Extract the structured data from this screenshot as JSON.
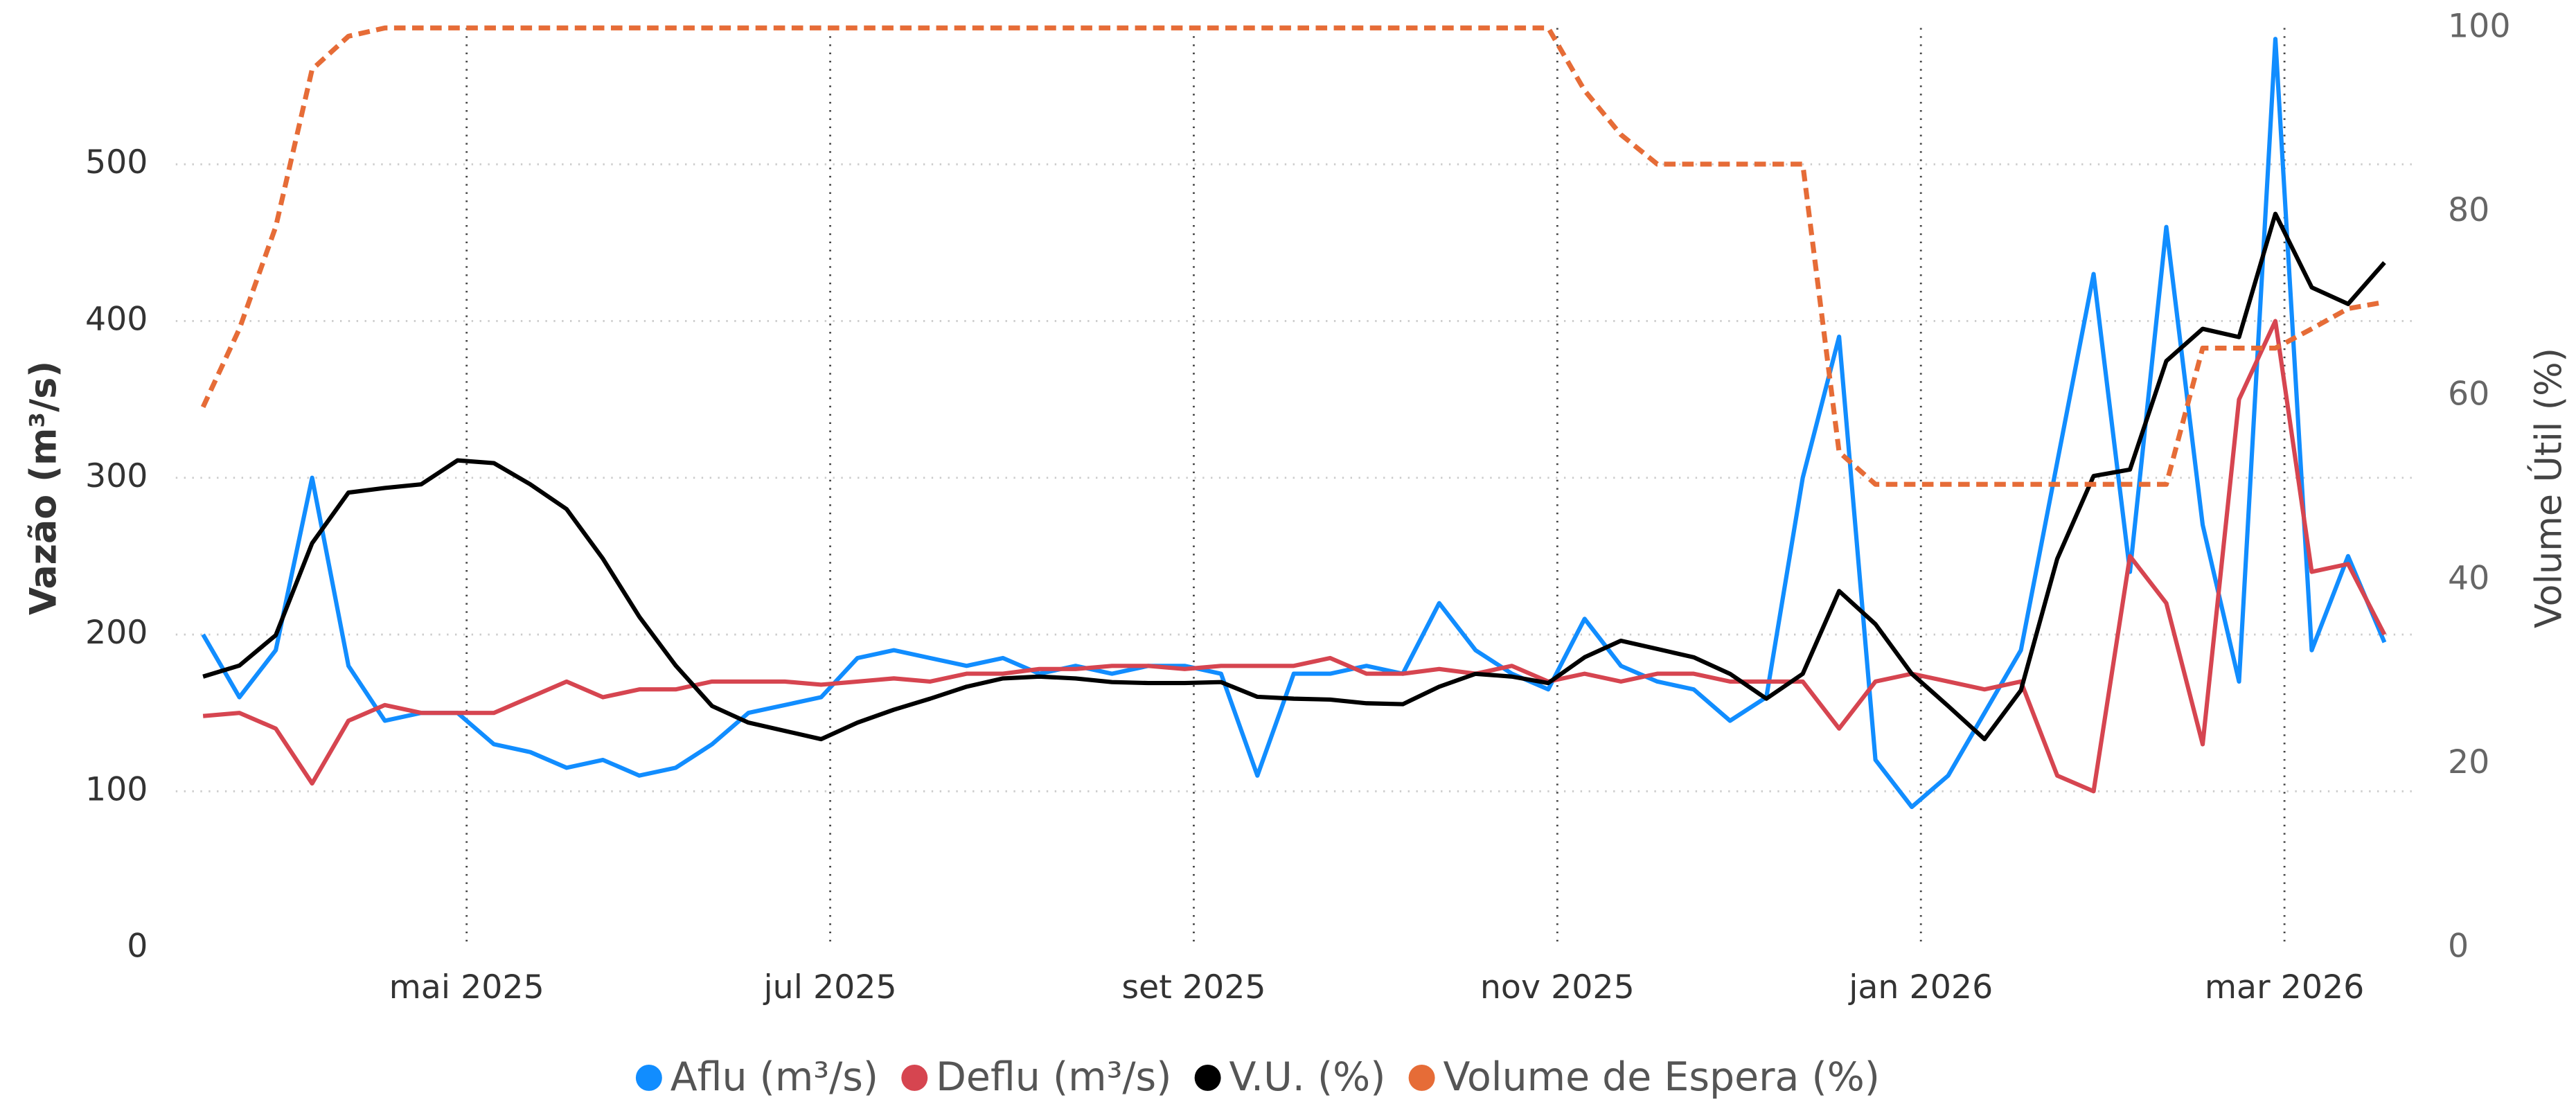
{
  "chart_data": {
    "type": "line",
    "y_label": "Vazão (m³/s)",
    "y2_label": "Volume Útil (%)",
    "x": [
      3.55,
      3.75,
      3.95,
      4.15,
      4.35,
      4.55,
      4.75,
      4.95,
      5.15,
      5.35,
      5.55,
      5.75,
      5.95,
      6.15,
      6.35,
      6.55,
      6.75,
      6.95,
      7.15,
      7.35,
      7.55,
      7.75,
      7.95,
      8.15,
      8.35,
      8.55,
      8.75,
      8.95,
      9.15,
      9.35,
      9.55,
      9.75,
      9.95,
      10.15,
      10.35,
      10.55,
      10.75,
      10.95,
      11.15,
      11.35,
      11.55,
      11.75,
      11.95,
      12.15,
      12.35,
      12.55,
      12.75,
      12.95,
      13.15,
      13.35,
      13.55,
      13.75,
      13.95,
      14.15,
      14.35,
      14.55,
      14.75,
      14.95,
      15.15,
      15.35,
      15.55
    ],
    "xlim": [
      3.4,
      15.7
    ],
    "xticks": [
      {
        "value": 5,
        "label": "mai 2025"
      },
      {
        "value": 7,
        "label": "jul 2025"
      },
      {
        "value": 9,
        "label": "set 2025"
      },
      {
        "value": 11,
        "label": "nov 2025"
      },
      {
        "value": 13,
        "label": "jan 2026"
      },
      {
        "value": 15,
        "label": "mar 2026"
      }
    ],
    "ylim": [
      0,
      587
    ],
    "yticks": [
      0,
      100,
      200,
      300,
      400,
      500
    ],
    "y2lim": [
      0,
      100
    ],
    "y2ticks": [
      0,
      20,
      40,
      60,
      80,
      100
    ],
    "grid": true,
    "series": [
      {
        "name": "Aflu (m³/s)",
        "color": "#118DFF",
        "values": [
          200,
          160,
          190,
          300,
          180,
          145,
          150,
          150,
          130,
          125,
          115,
          120,
          110,
          115,
          130,
          150,
          155,
          160,
          185,
          190,
          185,
          180,
          185,
          175,
          180,
          175,
          180,
          180,
          175,
          110,
          175,
          175,
          180,
          175,
          220,
          190,
          175,
          165,
          210,
          180,
          170,
          165,
          145,
          160,
          300,
          390,
          120,
          90,
          110,
          150,
          190,
          310,
          430,
          240,
          460,
          270,
          170,
          580,
          190,
          250,
          195
        ]
      },
      {
        "name": "Deflu (m³/s)",
        "color": "#D64550",
        "values": [
          148,
          150,
          140,
          105,
          145,
          155,
          150,
          150,
          150,
          160,
          170,
          160,
          165,
          165,
          170,
          170,
          170,
          168,
          170,
          172,
          170,
          175,
          175,
          178,
          178,
          180,
          180,
          178,
          180,
          180,
          180,
          185,
          175,
          175,
          178,
          175,
          180,
          170,
          175,
          170,
          175,
          175,
          170,
          170,
          170,
          140,
          170,
          175,
          170,
          165,
          170,
          110,
          100,
          250,
          220,
          130,
          350,
          400,
          240,
          245,
          200
        ]
      },
      {
        "name": "V.U. (%)",
        "color": "#000000",
        "axis": "y2",
        "values": [
          29.5,
          30.7,
          34,
          44,
          49.5,
          50,
          50.4,
          53,
          52.7,
          50.4,
          47.7,
          42.3,
          36,
          30.7,
          26.3,
          24.5,
          23.6,
          22.7,
          24.5,
          25.9,
          27.1,
          28.4,
          29.3,
          29.5,
          29.3,
          28.9,
          28.8,
          28.8,
          28.9,
          27.3,
          27.1,
          27,
          26.6,
          26.5,
          28.4,
          29.8,
          29.5,
          28.8,
          31.6,
          33.4,
          32.5,
          31.6,
          29.8,
          27.1,
          29.8,
          38.8,
          35.2,
          29.8,
          26.3,
          22.7,
          28,
          42.3,
          51.3,
          52,
          63.8,
          67.3,
          66.4,
          79.8,
          71.8,
          70,
          74.5
        ]
      },
      {
        "name": "Volume de Espera (%)",
        "color": "#E66C37",
        "axis": "y2",
        "dashed": true,
        "values": [
          58.8,
          67.3,
          78.4,
          95.5,
          99.1,
          100,
          100,
          100,
          100,
          100,
          100,
          100,
          100,
          100,
          100,
          100,
          100,
          100,
          100,
          100,
          100,
          100,
          100,
          100,
          100,
          100,
          100,
          100,
          100,
          100,
          100,
          100,
          100,
          100,
          100,
          100,
          100,
          100,
          93.2,
          88.4,
          85.2,
          85.2,
          85.2,
          85.2,
          85.2,
          53.9,
          50.4,
          50.4,
          50.4,
          50.4,
          50.4,
          50.4,
          50.4,
          50.4,
          50.4,
          65.2,
          65.2,
          65.2,
          67.3,
          69.5,
          70.2
        ]
      }
    ]
  }
}
